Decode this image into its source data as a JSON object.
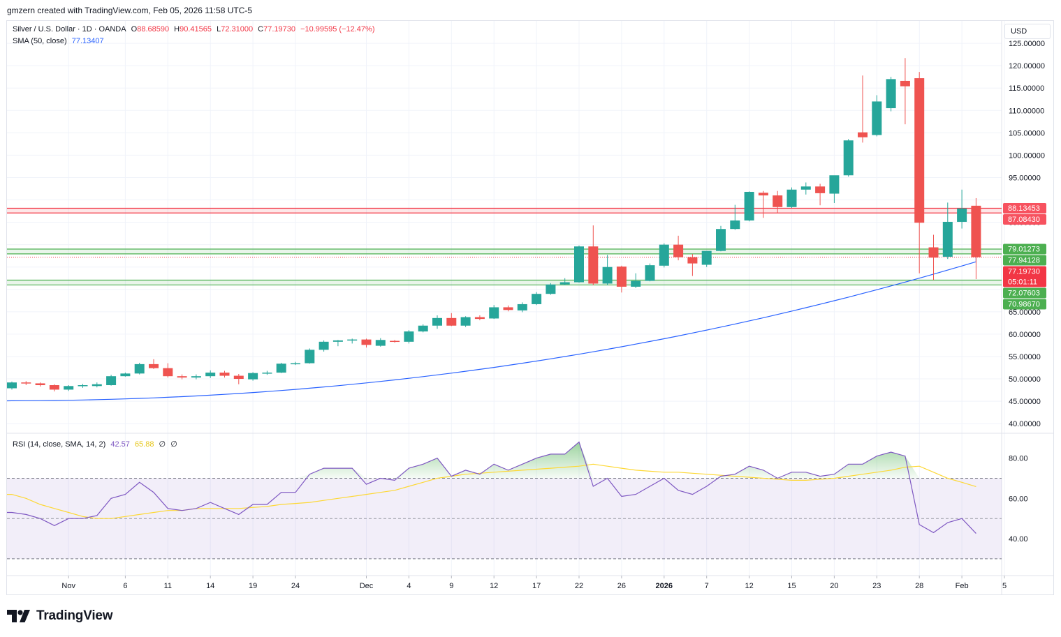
{
  "header": {
    "text": "gmzern created with TradingView.com, Feb 05, 2026 11:58 UTC-5"
  },
  "legend": {
    "symbol": "Silver / U.S. Dollar · 1D · OANDA",
    "o_label": "O",
    "o_value": "88.68590",
    "h_label": "H",
    "h_value": "90.41565",
    "l_label": "L",
    "l_value": "72.31000",
    "c_label": "C",
    "c_value": "77.19730",
    "change": "−10.99595 (−12.47%)",
    "sma_label": "SMA (50, close)",
    "sma_value": "77.13407",
    "rsi_label": "RSI (14, close, SMA, 14, 2)",
    "rsi_value": "42.57",
    "rsi_ma_value": "65.88",
    "rsi_extra1": "∅",
    "rsi_extra2": "∅"
  },
  "currency": "USD",
  "branding": {
    "logo_text": "TradingView"
  },
  "colors": {
    "up": "#26a69a",
    "down": "#ef5350",
    "sma": "#2962ff",
    "rsi": "#7e57c2",
    "rsi_ma": "#fdd835",
    "band_red": "#f23645",
    "band_green": "#4caf50"
  },
  "price_axis": {
    "labels": [
      "125.00000",
      "120.00000",
      "115.00000",
      "110.00000",
      "105.00000",
      "100.00000",
      "95.00000",
      "85.00000",
      "65.00000",
      "60.00000",
      "55.00000",
      "50.00000",
      "45.00000",
      "40.00000"
    ],
    "values": [
      125,
      120,
      115,
      110,
      105,
      100,
      95,
      85,
      65,
      60,
      55,
      50,
      45,
      40
    ]
  },
  "price_badges": [
    {
      "text": "88.13453",
      "value": 88.13453,
      "color": "#f7525f"
    },
    {
      "text": "87.08430",
      "value": 87.0843,
      "color": "#f7525f"
    },
    {
      "text": "79.01273",
      "value": 79.01273,
      "color": "#4caf50"
    },
    {
      "text": "77.94128",
      "value": 77.94128,
      "color": "#4caf50"
    },
    {
      "text": "77.19730",
      "value": 77.1973,
      "color": "#f23645",
      "sub": "05:01:11"
    },
    {
      "text": "72.07603",
      "value": 72.07603,
      "color": "#4caf50"
    },
    {
      "text": "70.98670",
      "value": 70.9867,
      "color": "#4caf50"
    }
  ],
  "rsi_axis": {
    "labels": [
      "80.00",
      "60.00",
      "40.00"
    ],
    "values": [
      80,
      60,
      40
    ]
  },
  "time_axis": {
    "labels": [
      "Nov",
      "6",
      "11",
      "14",
      "19",
      "24",
      "Dec",
      "4",
      "9",
      "12",
      "17",
      "22",
      "26",
      "2026",
      "7",
      "12",
      "15",
      "20",
      "23",
      "28",
      "Feb",
      "5"
    ],
    "positions": [
      4,
      8,
      11,
      14,
      17,
      20,
      25,
      28,
      31,
      34,
      37,
      40,
      43,
      46,
      49,
      52,
      55,
      58,
      61,
      64,
      67,
      70
    ]
  },
  "chart_data": {
    "type": "candlestick",
    "title": "Silver / U.S. Dollar · 1D · OANDA",
    "ylim": [
      38,
      130
    ],
    "candles": [
      [
        47.9,
        49.4,
        47.6,
        49.2
      ],
      [
        49.2,
        49.5,
        48.6,
        49.0
      ],
      [
        49.0,
        49.2,
        48.3,
        48.6
      ],
      [
        48.6,
        48.8,
        47.2,
        47.6
      ],
      [
        47.6,
        48.6,
        47.3,
        48.4
      ],
      [
        48.4,
        48.9,
        48.0,
        48.6
      ],
      [
        48.4,
        49.2,
        48.1,
        48.8
      ],
      [
        48.6,
        50.9,
        48.5,
        50.6
      ],
      [
        50.6,
        51.4,
        50.5,
        51.2
      ],
      [
        51.2,
        53.6,
        51.0,
        53.3
      ],
      [
        53.3,
        54.4,
        52.2,
        52.4
      ],
      [
        52.4,
        53.5,
        50.3,
        50.6
      ],
      [
        50.6,
        51.0,
        49.9,
        50.3
      ],
      [
        50.3,
        51.0,
        49.9,
        50.6
      ],
      [
        50.6,
        51.9,
        50.2,
        51.4
      ],
      [
        51.4,
        51.8,
        50.3,
        50.7
      ],
      [
        50.7,
        51.1,
        48.8,
        50.0
      ],
      [
        49.9,
        51.5,
        49.6,
        51.3
      ],
      [
        51.3,
        51.8,
        50.9,
        51.4
      ],
      [
        51.4,
        53.6,
        51.3,
        53.4
      ],
      [
        53.4,
        53.8,
        53.1,
        53.5
      ],
      [
        53.5,
        56.8,
        53.4,
        56.5
      ],
      [
        56.5,
        58.6,
        56.1,
        58.3
      ],
      [
        58.3,
        58.7,
        57.3,
        58.6
      ],
      [
        58.6,
        59.0,
        57.9,
        58.8
      ],
      [
        58.8,
        59.0,
        57.0,
        57.6
      ],
      [
        57.4,
        59.1,
        57.2,
        58.7
      ],
      [
        58.5,
        58.7,
        58.1,
        58.3
      ],
      [
        58.3,
        60.9,
        57.9,
        60.6
      ],
      [
        60.6,
        62.2,
        60.4,
        61.9
      ],
      [
        61.9,
        64.2,
        61.2,
        63.6
      ],
      [
        63.6,
        64.7,
        61.8,
        61.9
      ],
      [
        61.9,
        64.0,
        61.6,
        63.8
      ],
      [
        63.8,
        64.2,
        63.1,
        63.4
      ],
      [
        63.5,
        66.5,
        63.4,
        66.0
      ],
      [
        66.0,
        66.4,
        65.1,
        65.4
      ],
      [
        65.3,
        67.1,
        64.9,
        66.7
      ],
      [
        66.7,
        69.4,
        66.5,
        69.0
      ],
      [
        69.0,
        71.4,
        68.8,
        71.1
      ],
      [
        71.1,
        72.5,
        70.9,
        71.6
      ],
      [
        71.6,
        79.8,
        71.5,
        79.6
      ],
      [
        79.6,
        84.3,
        70.9,
        71.3
      ],
      [
        71.3,
        77.7,
        70.9,
        75.0
      ],
      [
        75.1,
        75.3,
        69.3,
        70.6
      ],
      [
        70.6,
        73.6,
        70.3,
        71.9
      ],
      [
        71.9,
        75.8,
        71.8,
        75.4
      ],
      [
        75.3,
        80.3,
        74.9,
        80.0
      ],
      [
        80.0,
        82.0,
        76.5,
        77.2
      ],
      [
        77.2,
        77.9,
        73.0,
        75.8
      ],
      [
        75.5,
        78.6,
        75.0,
        78.6
      ],
      [
        78.6,
        84.2,
        78.5,
        83.5
      ],
      [
        83.5,
        88.9,
        83.3,
        85.4
      ],
      [
        85.4,
        91.9,
        85.2,
        91.8
      ],
      [
        91.6,
        92.0,
        86.0,
        91.0
      ],
      [
        91.0,
        92.0,
        87.0,
        88.4
      ],
      [
        88.4,
        92.8,
        88.2,
        92.3
      ],
      [
        92.3,
        93.9,
        91.2,
        93.0
      ],
      [
        93.0,
        93.6,
        88.8,
        91.5
      ],
      [
        91.4,
        95.2,
        89.3,
        95.5
      ],
      [
        95.5,
        103.6,
        95.2,
        103.3
      ],
      [
        105.1,
        117.8,
        102.8,
        104.0
      ],
      [
        104.5,
        113.4,
        104.2,
        112.0
      ],
      [
        110.5,
        117.5,
        109.8,
        117.0
      ],
      [
        116.6,
        121.7,
        106.9,
        115.4
      ],
      [
        117.2,
        118.6,
        73.6,
        84.9
      ],
      [
        79.4,
        82.2,
        72.1,
        77.1
      ],
      [
        77.3,
        89.4,
        76.8,
        85.1
      ],
      [
        85.1,
        92.3,
        83.6,
        88.1
      ],
      [
        88.7,
        90.4,
        72.3,
        77.2
      ]
    ],
    "sma": {
      "name": "SMA (50, close)",
      "start": 45.1,
      "end": 77.13
    },
    "bands": [
      {
        "top": 88.13453,
        "bottom": 87.0843,
        "color": "#f23645"
      },
      {
        "top": 79.01273,
        "bottom": 77.94128,
        "color": "#4caf50"
      },
      {
        "top": 72.07603,
        "bottom": 70.9867,
        "color": "#4caf50"
      }
    ],
    "rsi": {
      "ylim": [
        22,
        92
      ],
      "levels": [
        70,
        50,
        30
      ],
      "values": [
        53,
        52,
        50,
        46.5,
        50,
        50,
        51.5,
        60,
        62,
        68,
        63,
        55,
        54,
        55,
        58,
        55,
        52,
        57,
        57,
        63,
        63,
        72,
        75,
        75,
        75,
        67,
        70,
        69,
        75,
        77,
        80,
        71,
        74,
        72,
        77,
        74,
        77,
        80,
        82,
        82,
        88,
        66,
        70,
        61,
        62,
        66,
        70,
        64,
        62,
        66,
        71,
        72,
        76,
        74,
        70,
        73,
        73,
        71,
        72,
        77,
        77,
        81,
        83,
        81,
        47,
        43,
        48,
        50,
        42.57
      ],
      "ma_values": [
        62,
        60,
        57,
        55,
        53,
        51,
        50,
        50,
        51,
        52,
        53,
        54,
        54,
        55,
        55,
        55,
        55,
        55.5,
        56,
        57,
        57.5,
        58,
        59,
        60,
        61,
        62,
        63,
        64,
        66,
        68,
        70,
        71,
        72,
        72.5,
        73,
        73.5,
        74,
        74.5,
        75,
        75.5,
        76,
        77,
        76,
        75,
        74,
        73.5,
        73,
        73,
        72.5,
        72,
        71.5,
        71,
        70.5,
        70,
        69.5,
        69,
        69,
        69.5,
        70,
        71,
        72,
        73,
        74,
        75.5,
        76,
        73,
        70,
        68,
        65.88
      ]
    }
  }
}
